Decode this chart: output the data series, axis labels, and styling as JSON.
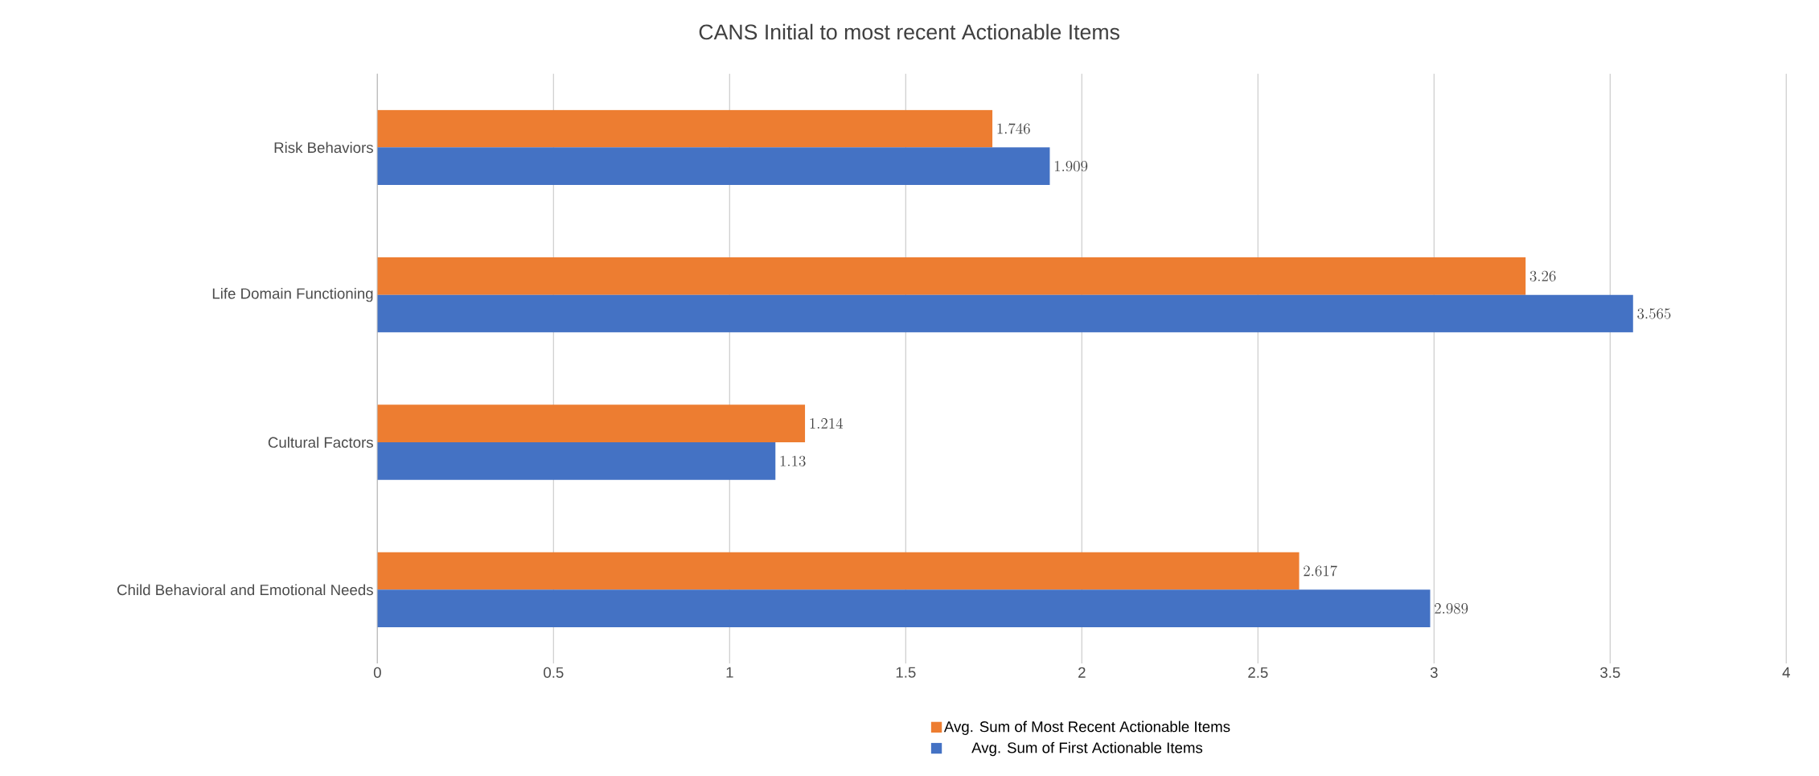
{
  "chart_data": {
    "type": "bar",
    "orientation": "horizontal",
    "title": "CANS Initial to most recent Actionable Items",
    "categories": [
      "Risk Behaviors",
      "Life Domain Functioning",
      "Cultural Factors",
      "Child Behavioral and Emotional Needs"
    ],
    "series": [
      {
        "name": "Avg. Sum of Most Recent Actionable Items",
        "color": "#ed7d31",
        "values": [
          1.746,
          3.26,
          1.214,
          2.617
        ]
      },
      {
        "name": "Avg. Sum of First Actionable Items",
        "color": "#4472c4",
        "values": [
          1.909,
          3.565,
          1.13,
          2.989
        ]
      }
    ],
    "xlim": [
      0,
      4
    ],
    "xticks": [
      0,
      0.5,
      1,
      1.5,
      2,
      2.5,
      3,
      3.5,
      4
    ],
    "grid": "x",
    "data_labels": true,
    "legend": "bottom"
  }
}
